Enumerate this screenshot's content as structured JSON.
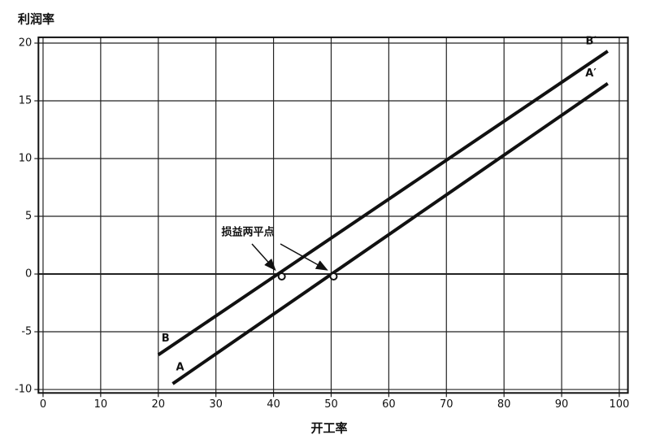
{
  "chart_data": {
    "type": "line",
    "y_axis_label": "利润率",
    "x_axis_label": "开工率",
    "xlim": [
      -0.8,
      101.5
    ],
    "ylim": [
      -10.3,
      20.5
    ],
    "xticks": [
      0,
      10,
      20,
      30,
      40,
      50,
      60,
      70,
      80,
      90,
      100
    ],
    "yticks": [
      -10,
      -5,
      0,
      5,
      10,
      15,
      20
    ],
    "grid": true,
    "color": "#111111",
    "series": [
      {
        "name": "B",
        "end_label": "B′",
        "color": "#111111",
        "x": [
          20,
          98
        ],
        "values": [
          -7,
          19.3
        ]
      },
      {
        "name": "A",
        "end_label": "A′",
        "color": "#111111",
        "x": [
          22.5,
          98
        ],
        "values": [
          -9.5,
          16.5
        ]
      }
    ],
    "annotation": {
      "text": "损益两平点"
    },
    "break_even_points": {
      "x": [
        41,
        50
      ],
      "y": [
        0,
        0
      ]
    }
  }
}
